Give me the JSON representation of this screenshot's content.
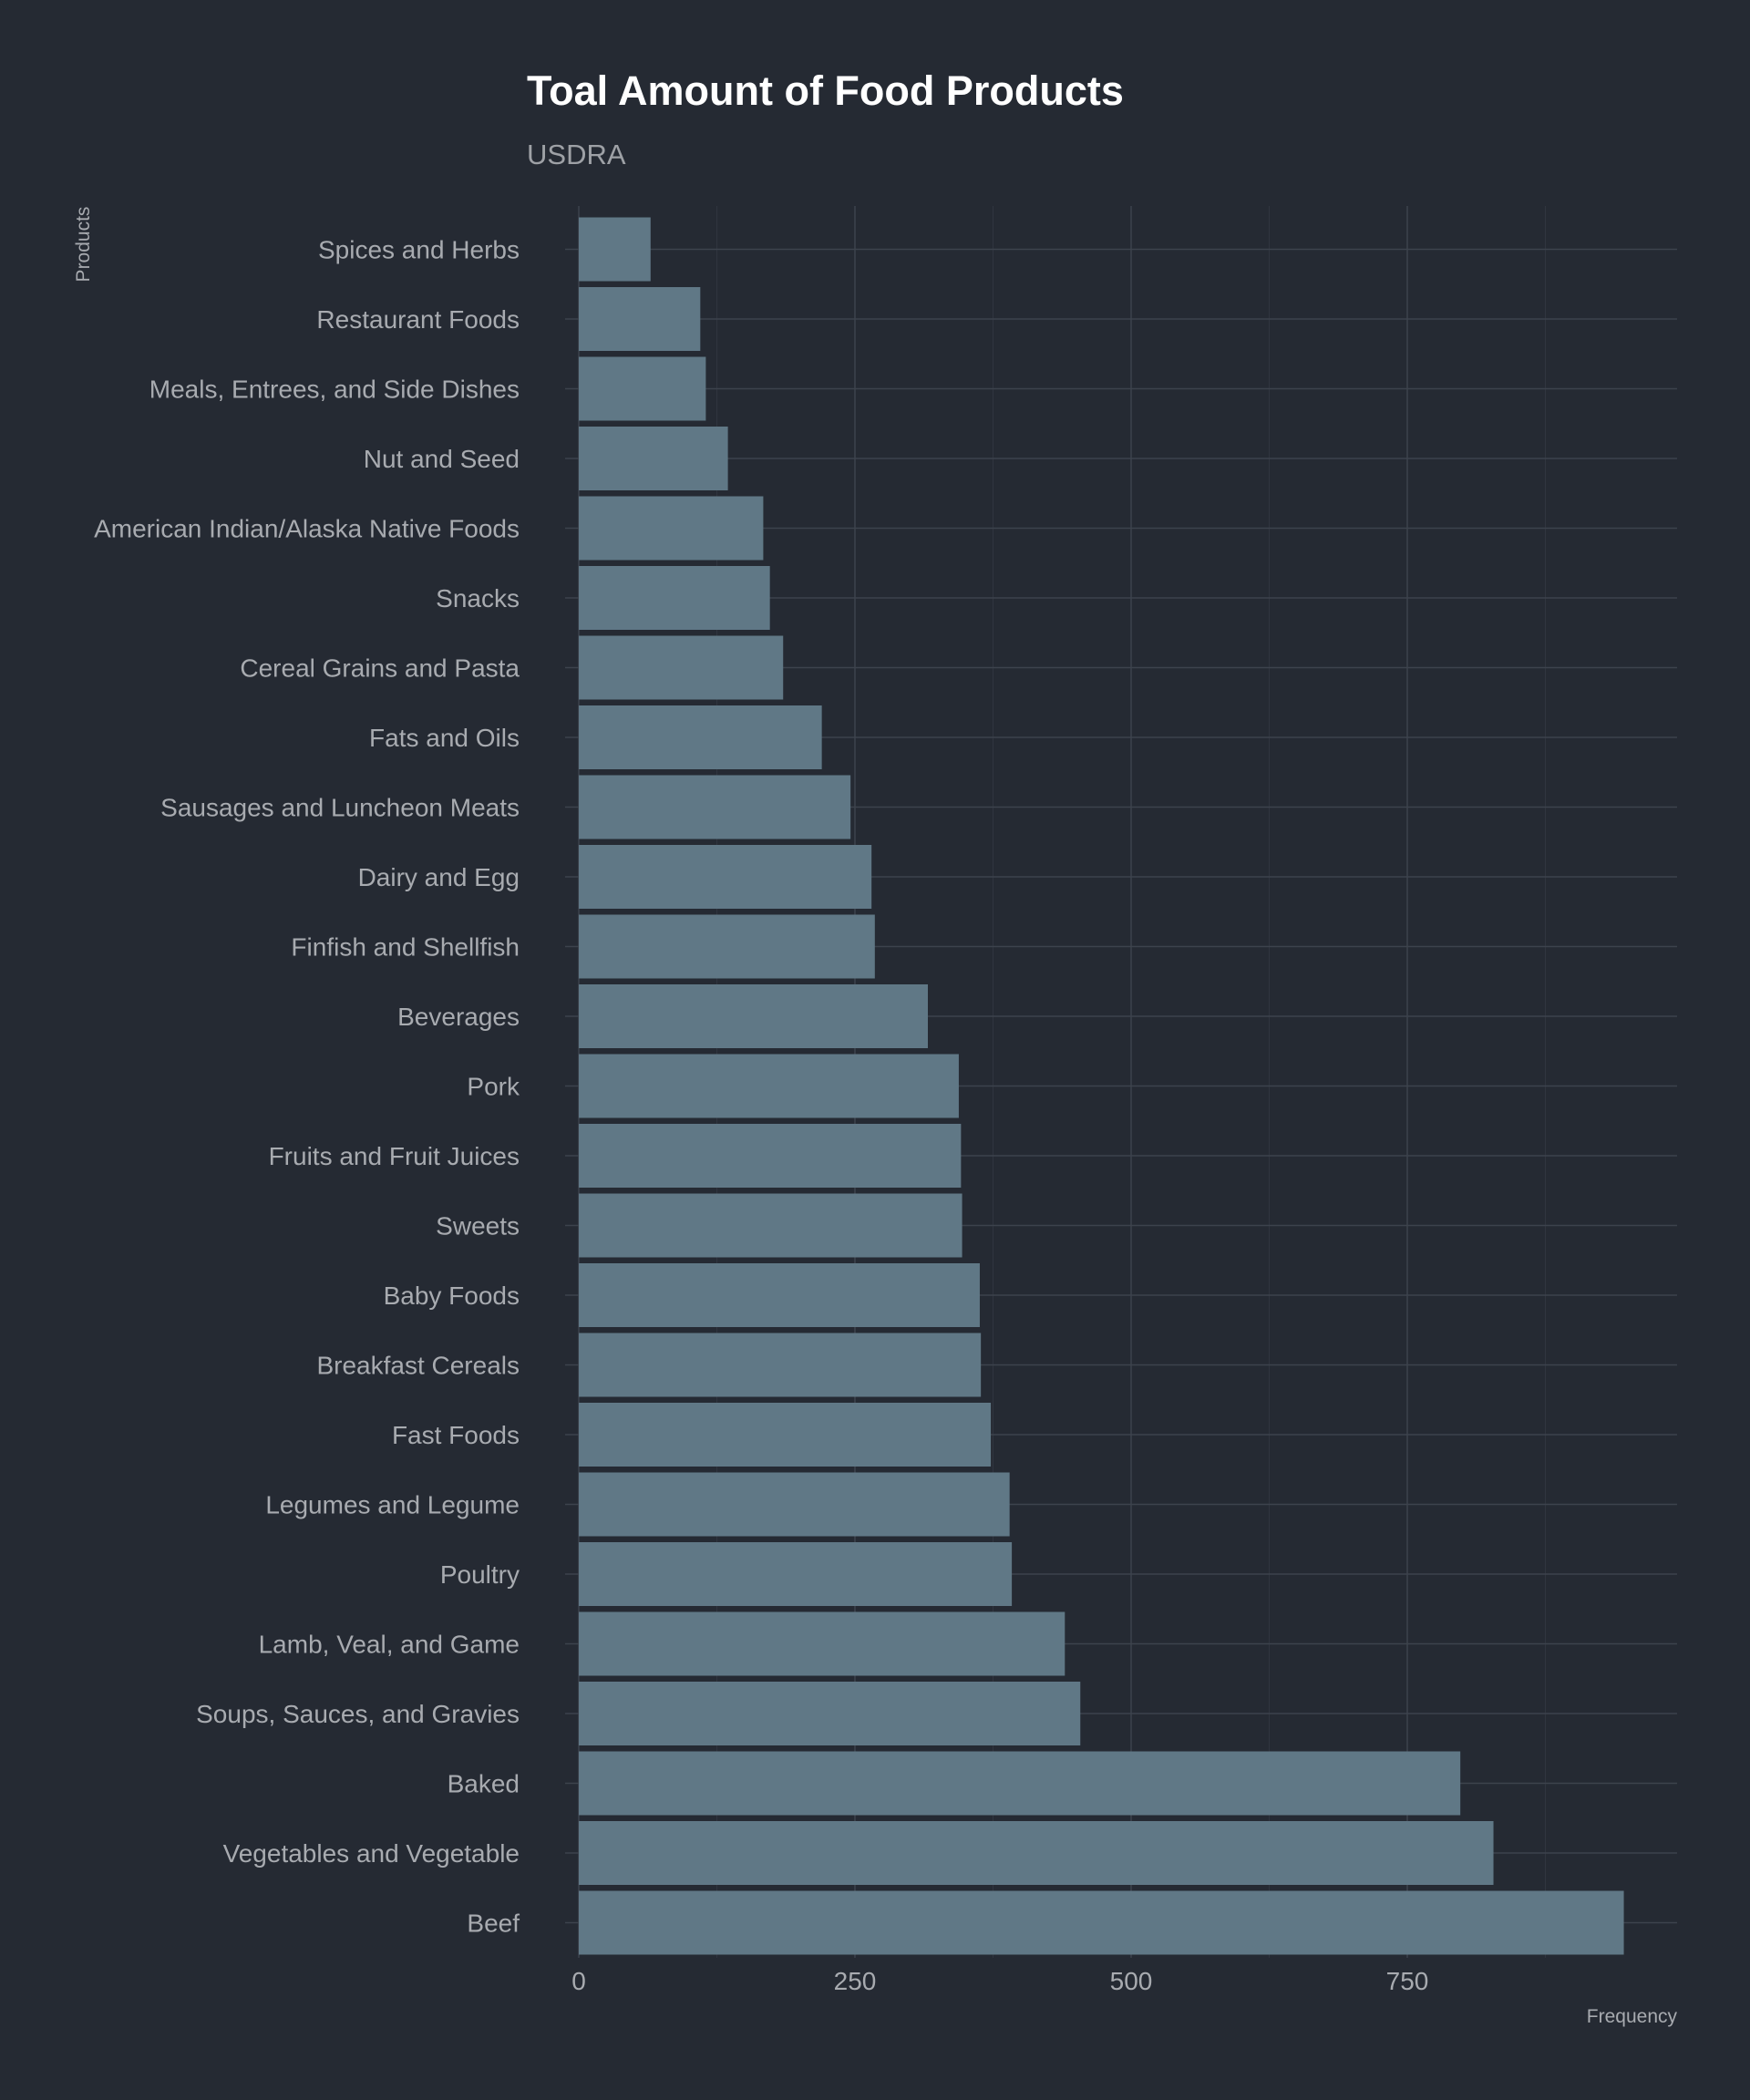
{
  "chart_data": {
    "type": "bar",
    "orientation": "horizontal",
    "title": "Toal Amount of Food Products",
    "subtitle": "USDRA",
    "xlabel": "Frequency",
    "ylabel": "Products",
    "xlim": [
      0,
      995
    ],
    "x_ticks": [
      0,
      250,
      500,
      750
    ],
    "x_tick_labels": [
      "0",
      "250",
      "500",
      "750"
    ],
    "grid": true,
    "colors": {
      "background": "#252a33",
      "bar": "#607886",
      "title": "#ffffff",
      "text": "#a8abb0",
      "grid": "#3d434d"
    },
    "categories": [
      "Spices and Herbs",
      "Restaurant Foods",
      "Meals, Entrees, and Side Dishes",
      "Nut and Seed",
      "American Indian/Alaska Native Foods",
      "Snacks",
      "Cereal Grains and Pasta",
      "Fats and Oils",
      "Sausages and Luncheon Meats",
      "Dairy and Egg",
      "Finfish and Shellfish",
      "Beverages",
      "Pork",
      "Fruits and Fruit Juices",
      "Sweets",
      "Baby Foods",
      "Breakfast Cereals",
      "Fast Foods",
      "Legumes and Legume",
      "Poultry",
      "Lamb, Veal, and Game",
      "Soups, Sauces, and Gravies",
      "Baked",
      "Vegetables and Vegetable",
      "Beef"
    ],
    "values": [
      65,
      110,
      115,
      135,
      167,
      173,
      185,
      220,
      246,
      265,
      268,
      316,
      344,
      346,
      347,
      363,
      364,
      373,
      390,
      392,
      440,
      454,
      798,
      828,
      946
    ]
  }
}
